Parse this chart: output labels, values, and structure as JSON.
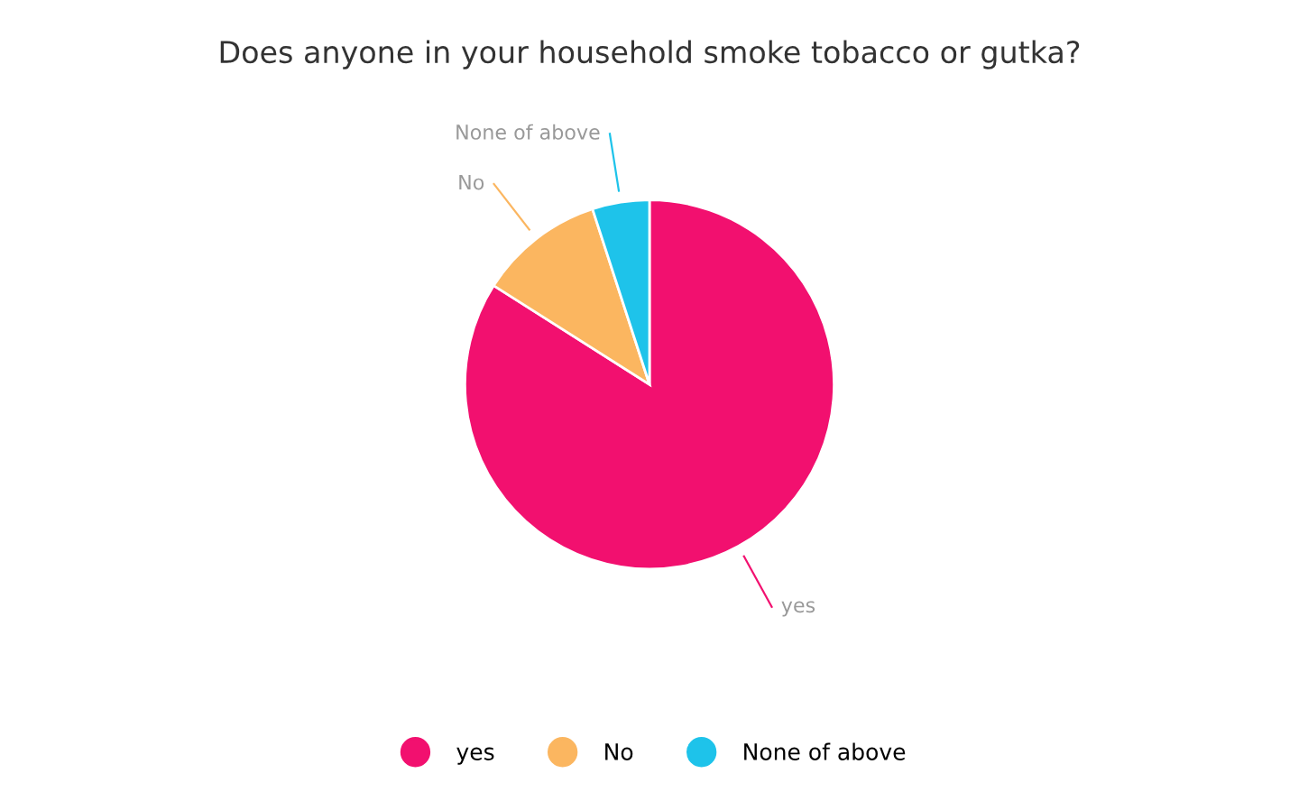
{
  "chart_data": {
    "type": "pie",
    "title": "Does anyone in your household smoke tobacco or gutka?",
    "categories": [
      "yes",
      "No",
      "None of above"
    ],
    "values": [
      84,
      11,
      5
    ],
    "colors": [
      "#f2106f",
      "#fbb660",
      "#1ec3ea"
    ],
    "legend": "bottom"
  }
}
